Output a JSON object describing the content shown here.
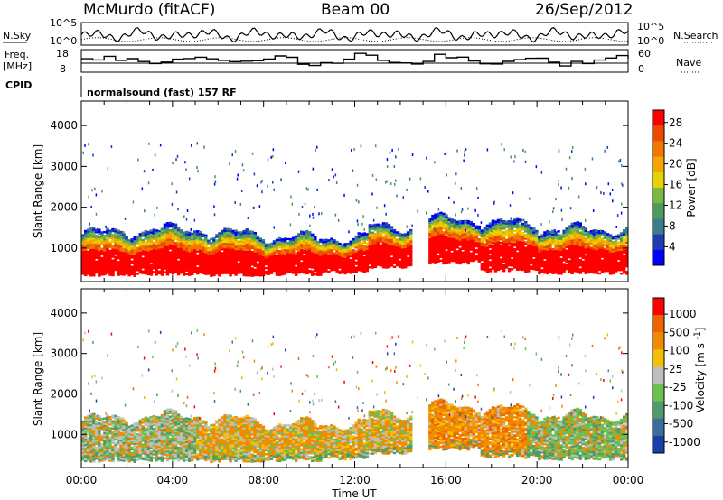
{
  "header": {
    "station": "McMurdo (fitACF)",
    "beam": "Beam 00",
    "date": "26/Sep/2012"
  },
  "top_panels": {
    "nsky_label": "N.Sky",
    "nsky_ticks": [
      "10^5",
      "10^0"
    ],
    "nsearch_label": "N.Search",
    "nsearch_ticks": [
      "10^5",
      "10^0"
    ],
    "freq_label_1": "Freq.",
    "freq_label_2": "[MHz]",
    "freq_ticks": [
      "18",
      "8"
    ],
    "nave_label": "Nave",
    "nave_ticks": [
      "60",
      "0"
    ],
    "cpid_label": "CPID",
    "cpid_text": "normalsound (fast) 157 RF"
  },
  "chart_data": [
    {
      "type": "heatmap",
      "name": "power-panel",
      "xlabel": "",
      "ylabel": "Slant Range [km]",
      "x_ticks": [
        "00:00",
        "04:00",
        "08:00",
        "12:00",
        "16:00",
        "20:00",
        "00:00"
      ],
      "y_ticks": [
        1000,
        2000,
        3000,
        4000
      ],
      "ylim": [
        180,
        4600
      ],
      "xlim_hours": [
        0,
        24
      ],
      "colorbar": {
        "label": "Power [dB]",
        "ticks": [
          4,
          8,
          12,
          16,
          20,
          24,
          28
        ],
        "colors": [
          "#0000ff",
          "#1e3cb4",
          "#3c7d8c",
          "#4b9b5a",
          "#7ab845",
          "#e6d200",
          "#f5a500",
          "#f07800",
          "#ec4a00",
          "#ff0000"
        ]
      },
      "bands": [
        {
          "t0": 0.0,
          "t1": 1.0,
          "r0": 300,
          "r1": 1350
        },
        {
          "t0": 1.0,
          "t1": 3.0,
          "r0": 300,
          "r1": 1400
        },
        {
          "t0": 3.0,
          "t1": 5.5,
          "r0": 320,
          "r1": 1450
        },
        {
          "t0": 5.5,
          "t1": 8.0,
          "r0": 300,
          "r1": 1350
        },
        {
          "t0": 8.0,
          "t1": 10.5,
          "r0": 320,
          "r1": 1250
        },
        {
          "t0": 10.5,
          "t1": 12.5,
          "r0": 350,
          "r1": 1250
        },
        {
          "t0": 12.5,
          "t1": 14.5,
          "r0": 500,
          "r1": 1500
        },
        {
          "t0": 15.2,
          "t1": 17.5,
          "r0": 600,
          "r1": 1700
        },
        {
          "t0": 17.5,
          "t1": 20.0,
          "r0": 400,
          "r1": 1600
        },
        {
          "t0": 20.0,
          "t1": 24.0,
          "r0": 350,
          "r1": 1450
        }
      ]
    },
    {
      "type": "heatmap",
      "name": "velocity-panel",
      "xlabel": "Time UT",
      "ylabel": "Slant Range [km]",
      "x_ticks": [
        "00:00",
        "04:00",
        "08:00",
        "12:00",
        "16:00",
        "20:00",
        "00:00"
      ],
      "y_ticks": [
        1000,
        2000,
        3000,
        4000
      ],
      "ylim": [
        180,
        4600
      ],
      "xlim_hours": [
        0,
        24
      ],
      "colorbar": {
        "label": "Velocity [m s^-1]",
        "ticks": [
          "1000",
          "500",
          "100",
          "25",
          "-25",
          "-100",
          "-500",
          "-1000"
        ],
        "colors": [
          "#1a3fa6",
          "#3c6d9b",
          "#4f9a6b",
          "#6cc04f",
          "#bfbfbf",
          "#f2c000",
          "#f28a00",
          "#f06400",
          "#ff0000"
        ]
      }
    }
  ]
}
